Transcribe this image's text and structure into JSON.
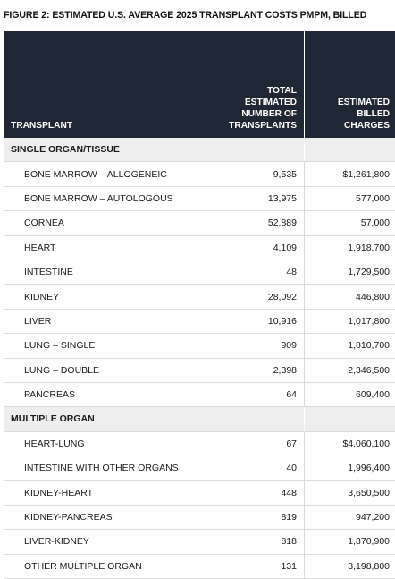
{
  "figure_title": "FIGURE 2: ESTIMATED U.S. AVERAGE 2025 TRANSPLANT COSTS PMPM, BILLED",
  "header": {
    "col1": "TRANSPLANT",
    "col2": "TOTAL\nESTIMATED\nNUMBER OF\nTRANSPLANTS",
    "col3": "ESTIMATED\nBILLED\nCHARGES"
  },
  "sections": [
    {
      "title": "SINGLE ORGAN/TISSUE",
      "rows": [
        {
          "name": "BONE MARROW – ALLOGENEIC",
          "count": "9,535",
          "charges": "$1,261,800"
        },
        {
          "name": "BONE MARROW – AUTOLOGOUS",
          "count": "13,975",
          "charges": "577,000"
        },
        {
          "name": "CORNEA",
          "count": "52,889",
          "charges": "57,000"
        },
        {
          "name": "HEART",
          "count": "4,109",
          "charges": "1,918,700"
        },
        {
          "name": "INTESTINE",
          "count": "48",
          "charges": "1,729,500"
        },
        {
          "name": "KIDNEY",
          "count": "28,092",
          "charges": "446,800"
        },
        {
          "name": "LIVER",
          "count": "10,916",
          "charges": "1,017,800"
        },
        {
          "name": "LUNG – SINGLE",
          "count": "909",
          "charges": "1,810,700"
        },
        {
          "name": "LUNG – DOUBLE",
          "count": "2,398",
          "charges": "2,346,500"
        },
        {
          "name": "PANCREAS",
          "count": "64",
          "charges": "609,400"
        }
      ]
    },
    {
      "title": "MULTIPLE ORGAN",
      "rows": [
        {
          "name": "HEART-LUNG",
          "count": "67",
          "charges": "$4,060,100"
        },
        {
          "name": "INTESTINE WITH OTHER ORGANS",
          "count": "40",
          "charges": "1,996,400"
        },
        {
          "name": "KIDNEY-HEART",
          "count": "448",
          "charges": "3,650,500"
        },
        {
          "name": "KIDNEY-PANCREAS",
          "count": "819",
          "charges": "947,200"
        },
        {
          "name": "LIVER-KIDNEY",
          "count": "818",
          "charges": "1,870,900"
        },
        {
          "name": "OTHER MULTIPLE ORGAN",
          "count": "131",
          "charges": "3,198,800"
        }
      ]
    }
  ]
}
